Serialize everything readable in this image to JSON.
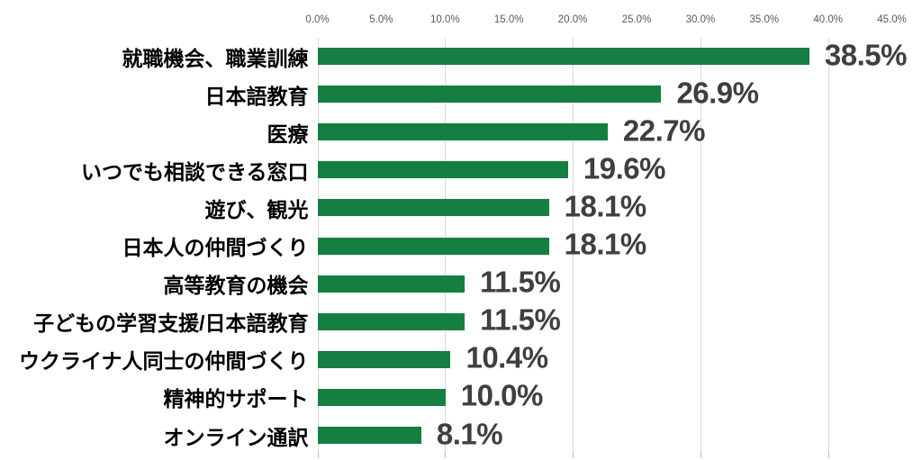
{
  "chart_data": {
    "type": "bar",
    "orientation": "horizontal",
    "title": "",
    "xlabel": "",
    "ylabel": "",
    "xlim": [
      0,
      45
    ],
    "grid": true,
    "categories": [
      "就職機会、職業訓練",
      "日本語教育",
      "医療",
      "いつでも相談できる窓口",
      "遊び、観光",
      "日本人の仲間づくり",
      "高等教育の機会",
      "子どもの学習支援/日本語教育",
      "ウクライナ人同士の仲間づくり",
      "精神的サポート",
      "オンライン通訳"
    ],
    "values": [
      38.5,
      26.9,
      22.7,
      19.6,
      18.1,
      18.1,
      11.5,
      11.5,
      10.4,
      10.0,
      8.1
    ],
    "value_labels": [
      "38.5%",
      "26.9%",
      "22.7%",
      "19.6%",
      "18.1%",
      "18.1%",
      "11.5%",
      "11.5%",
      "10.4%",
      "10.0%",
      "8.1%"
    ],
    "x_tick_labels": [
      "0.0%",
      "5.0%",
      "10.0%",
      "15.0%",
      "20.0%",
      "25.0%",
      "30.0%",
      "35.0%",
      "40.0%",
      "45.0%"
    ],
    "x_tick_values": [
      0,
      5,
      10,
      15,
      20,
      25,
      30,
      35,
      40,
      45
    ],
    "gridline_values": [
      0,
      10,
      20,
      30,
      40
    ],
    "legend": null,
    "colors": {
      "bar": "#157e41",
      "value_label": "#3f3f3f",
      "category_label": "#000000",
      "axis_tick_label": "#595959",
      "gridline": "#d9d9d9",
      "tick_mark": "#bfbfbf",
      "background": "#ffffff"
    }
  }
}
